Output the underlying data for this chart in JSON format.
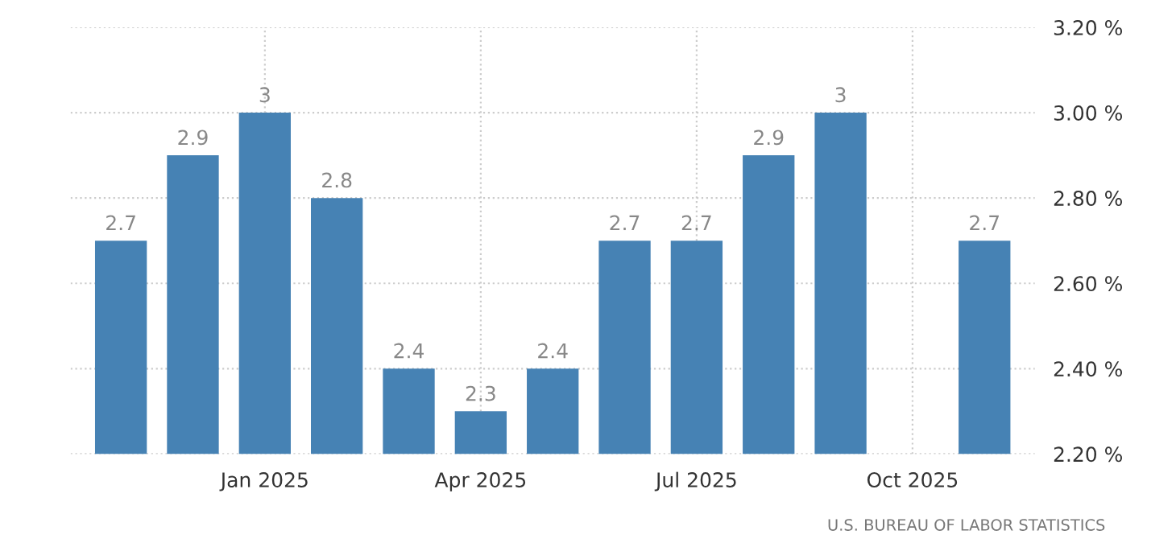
{
  "chart_data": {
    "type": "bar",
    "categories": [
      null,
      null,
      "Jan 2025",
      null,
      null,
      "Apr 2025",
      null,
      null,
      "Jul 2025",
      null,
      null,
      "Oct 2025",
      null
    ],
    "values": [
      2.7,
      2.9,
      3,
      2.8,
      2.4,
      2.3,
      2.4,
      2.7,
      2.7,
      2.9,
      3,
      null,
      2.7
    ],
    "color": "#4682b4",
    "ylim": [
      2.2,
      3.2
    ],
    "yticks": [
      {
        "value": 2.2,
        "label": "2.20 %"
      },
      {
        "value": 2.4,
        "label": "2.40 %"
      },
      {
        "value": 2.6,
        "label": "2.60 %"
      },
      {
        "value": 2.8,
        "label": "2.80 %"
      },
      {
        "value": 3.0,
        "label": "3.00 %"
      },
      {
        "value": 3.2,
        "label": "3.20 %"
      }
    ],
    "grid": true,
    "data_labels": true,
    "annotations": [
      "U.S. BUREAU OF LABOR STATISTICS"
    ]
  }
}
